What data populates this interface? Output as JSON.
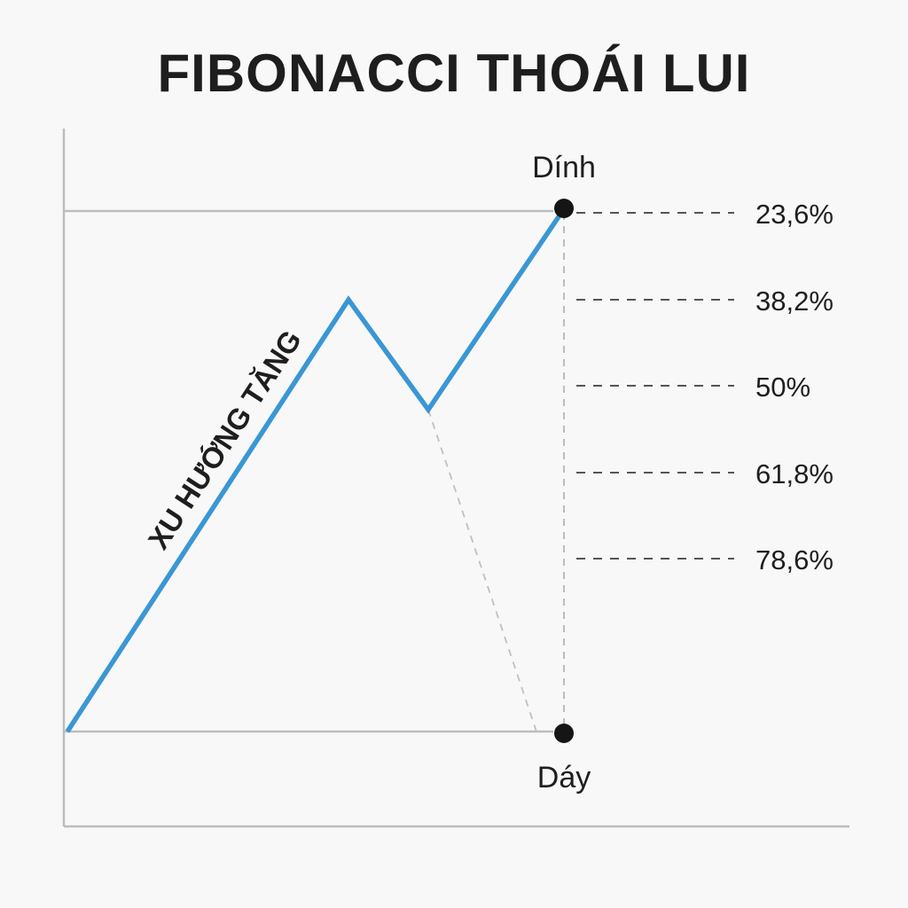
{
  "title": "FIBONACCI THOÁI LUI",
  "trend_label": "XU HƯỚNG TĂNG",
  "peak_label": "Dính",
  "trough_label": "Dáy",
  "levels": [
    "23,6%",
    "38,2%",
    "50%",
    "61,8%",
    "78,6%"
  ],
  "colors": {
    "trend_line": "#3a97d4",
    "axis": "#bdbdbd",
    "dashed": "#555555",
    "point": "#151515",
    "background": "#f8f8f8"
  }
}
